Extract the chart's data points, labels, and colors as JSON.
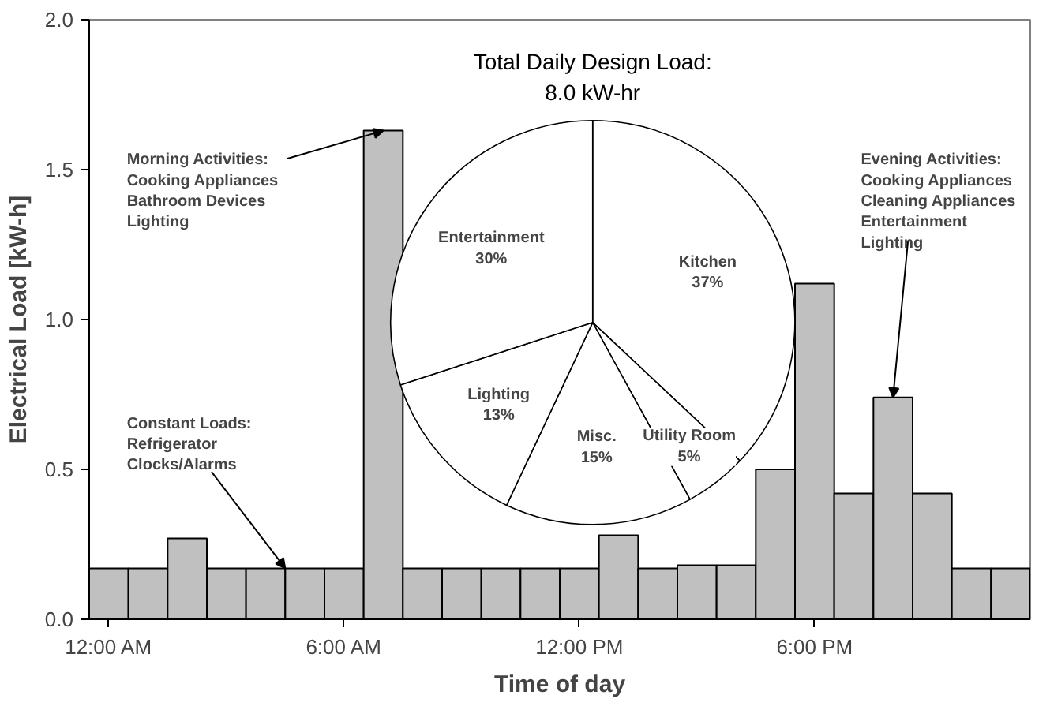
{
  "chart_data": [
    {
      "type": "bar",
      "xlabel": "Time of day",
      "ylabel": "Electrical Load [kW-h]",
      "x": [
        0,
        1,
        2,
        3,
        4,
        5,
        6,
        7,
        8,
        9,
        10,
        11,
        12,
        13,
        14,
        15,
        16,
        17,
        18,
        19,
        20,
        21,
        22,
        23
      ],
      "values": [
        0.17,
        0.17,
        0.27,
        0.17,
        0.17,
        0.17,
        0.17,
        1.63,
        0.17,
        0.17,
        0.17,
        0.17,
        0.17,
        0.28,
        0.17,
        0.18,
        0.18,
        0.5,
        1.12,
        0.42,
        0.74,
        0.42,
        0.17,
        0.17
      ],
      "color": "#c0c0c0",
      "xlim": [
        -0.5,
        23.5
      ],
      "xticks": [
        {
          "value": 0,
          "label": "12:00 AM"
        },
        {
          "value": 6,
          "label": "6:00 AM"
        },
        {
          "value": 12,
          "label": "12:00 PM"
        },
        {
          "value": 18,
          "label": "6:00 PM"
        }
      ],
      "ylim": [
        0,
        2.0
      ],
      "yticks": [
        {
          "value": 0,
          "label": "0.0"
        },
        {
          "value": 0.5,
          "label": "0.5"
        },
        {
          "value": 1.0,
          "label": "1.0"
        },
        {
          "value": 1.5,
          "label": "1.5"
        },
        {
          "value": 2.0,
          "label": "2.0"
        }
      ],
      "grid": false,
      "annotations": [
        {
          "text": "Constant Loads:\nRefrigerator\nClocks/Alarms",
          "x": 4.5,
          "y": 0.17
        },
        {
          "text": "Morning Activities:\nCooking Appliances\nBathroom Devices\nLighting",
          "x": 7,
          "y": 1.63
        },
        {
          "text": "Evening Activities:\nCooking Appliances\nCleaning Appliances\nEntertainment\nLighting",
          "x": 20,
          "y": 0.74
        }
      ]
    },
    {
      "type": "pie",
      "title": "Total Daily Design Load:\n8.0 kW-hr",
      "categories": [
        "Kitchen",
        "Utility Room",
        "Misc.",
        "Lighting",
        "Entertainment"
      ],
      "values": [
        37,
        5,
        15,
        13,
        30
      ],
      "colors": [
        "#ffffff",
        "#ffffff",
        "#ffffff",
        "#ffffff",
        "#ffffff"
      ],
      "value_labels": [
        "37%",
        "5%",
        "15%",
        "13%",
        "30%"
      ]
    }
  ]
}
